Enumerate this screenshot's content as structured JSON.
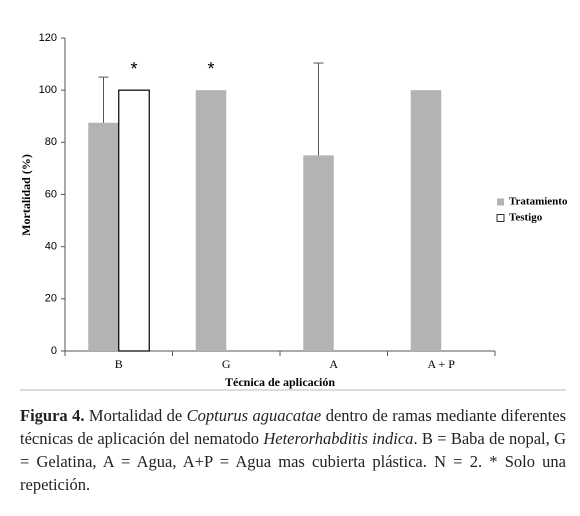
{
  "chart_data": {
    "type": "bar",
    "categories": [
      "B",
      "G",
      "A",
      "A + P"
    ],
    "series": [
      {
        "name": "Tratamiento",
        "color": "#b3b3b3",
        "values": [
          87.5,
          100,
          75,
          100
        ],
        "errors": [
          17.5,
          null,
          35.4,
          null
        ]
      },
      {
        "name": "Testigo",
        "color": "#ffffff",
        "values": [
          100,
          null,
          null,
          null
        ]
      }
    ],
    "ylim": [
      0,
      120
    ],
    "yticks": [
      0,
      20,
      40,
      60,
      80,
      100,
      120
    ],
    "ylabel": "Mortalidad (%)",
    "xlabel": "Técnica de aplicación",
    "annotations": [
      "*",
      "*"
    ],
    "legend": "right"
  },
  "caption": {
    "label": "Figura 4.",
    "parts": [
      "Mortalidad de",
      "Copturus aguacatae",
      "dentro de ramas mediante diferentes técnicas de aplicación del nematodo",
      "Heterorhabditis indica",
      ". B = Baba de nopal, G = Gelatina, A = Agua, A+P = Agua mas cubierta plástica. N = 2. * Solo una repetición."
    ]
  }
}
